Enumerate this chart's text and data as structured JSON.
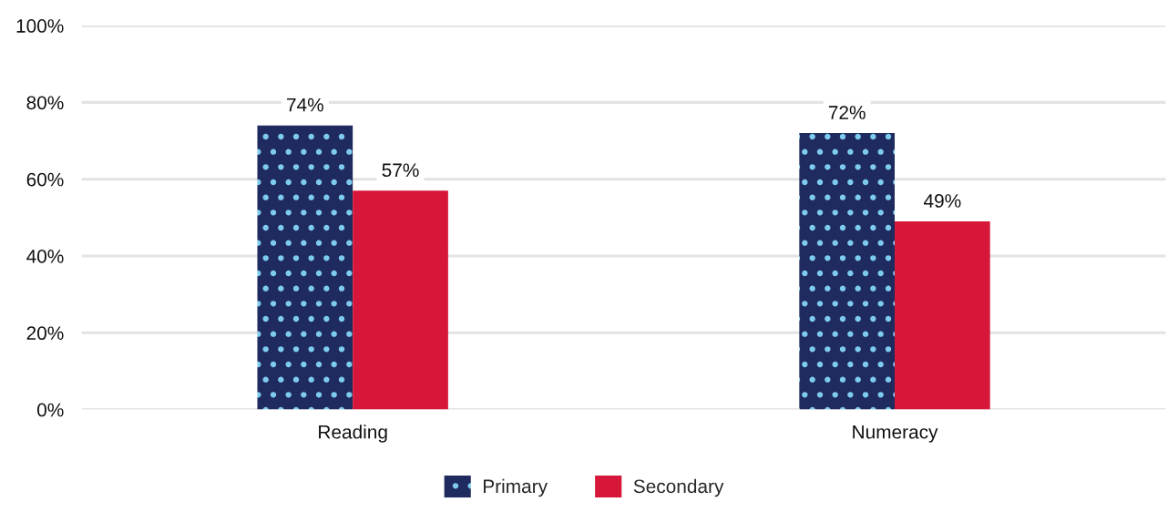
{
  "chart_data": {
    "type": "bar",
    "categories": [
      "Reading",
      "Numeracy"
    ],
    "series": [
      {
        "name": "Primary",
        "color": "#1f2b5e",
        "values": [
          74,
          72
        ],
        "value_labels": [
          "74%",
          "72%"
        ]
      },
      {
        "name": "Secondary",
        "color": "#d6173a",
        "values": [
          57,
          49
        ],
        "value_labels": [
          "57%",
          "49%"
        ]
      }
    ],
    "ylim": [
      0,
      100
    ],
    "yticks": [
      {
        "value": 0,
        "label": "0%"
      },
      {
        "value": 20,
        "label": "20%"
      },
      {
        "value": 40,
        "label": "40%"
      },
      {
        "value": 60,
        "label": "60%"
      },
      {
        "value": 80,
        "label": "80%"
      },
      {
        "value": 100,
        "label": "100%"
      }
    ],
    "grid": "y",
    "legend": "bottom"
  }
}
